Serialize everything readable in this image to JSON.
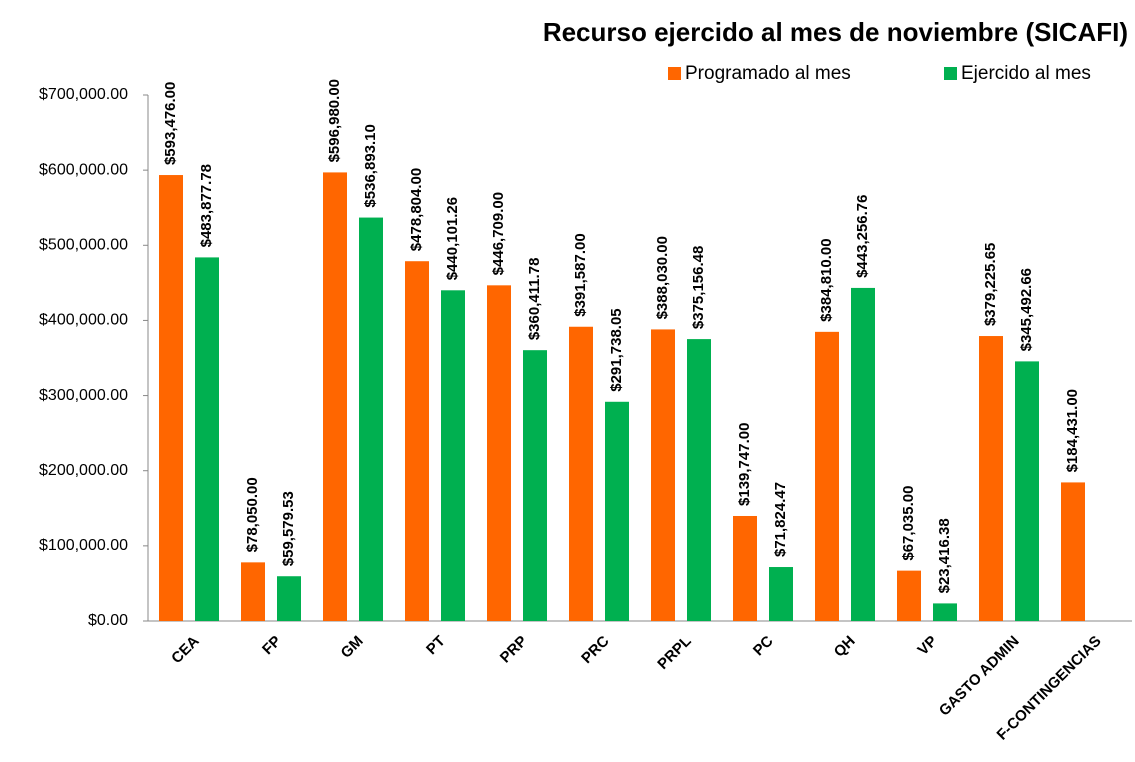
{
  "chart_data": {
    "type": "bar",
    "title": "Recurso ejercido al mes de noviembre  (SICAFI)",
    "categories": [
      "CEA",
      "FP",
      "GM",
      "PT",
      "PRP",
      "PRC",
      "PRPL",
      "PC",
      "QH",
      "VP",
      "GASTO ADMIN",
      "F-CONTINGENCIAS"
    ],
    "series": [
      {
        "name": "Programado al mes",
        "color": "#ff6600",
        "values": [
          593476,
          78050,
          596980,
          478804,
          446709,
          391587,
          388030,
          139747,
          384810,
          67035,
          379225.65,
          184431
        ],
        "value_labels": [
          "$593,476.00",
          "$78,050.00",
          "$596,980.00",
          "$478,804.00",
          "$446,709.00",
          "$391,587.00",
          "$388,030.00",
          "$139,747.00",
          "$384,810.00",
          "$67,035.00",
          "$379,225.65",
          "$184,431.00"
        ]
      },
      {
        "name": "Ejercido al mes",
        "color": "#00b050",
        "values": [
          483877.78,
          59579.53,
          536893.1,
          440101.26,
          360411.78,
          291738.05,
          375156.48,
          71824.47,
          443256.76,
          23416.38,
          345492.66,
          null
        ],
        "value_labels": [
          "$483,877.78",
          "$59,579.53",
          "$536,893.10",
          "$440,101.26",
          "$360,411.78",
          "$291,738.05",
          "$375,156.48",
          "$71,824.47",
          "$443,256.76",
          "$23,416.38",
          "$345,492.66",
          null
        ]
      }
    ],
    "ylim": [
      0,
      700000
    ],
    "yticks": [
      {
        "value": 0,
        "label": "$0.00"
      },
      {
        "value": 100000,
        "label": "$100,000.00"
      },
      {
        "value": 200000,
        "label": "$200,000.00"
      },
      {
        "value": 300000,
        "label": "$300,000.00"
      },
      {
        "value": 400000,
        "label": "$400,000.00"
      },
      {
        "value": 500000,
        "label": "$500,000.00"
      },
      {
        "value": 600000,
        "label": "$600,000.00"
      },
      {
        "value": 700000,
        "label": "$700,000.00"
      }
    ],
    "legend": "top-right",
    "grid": false
  }
}
